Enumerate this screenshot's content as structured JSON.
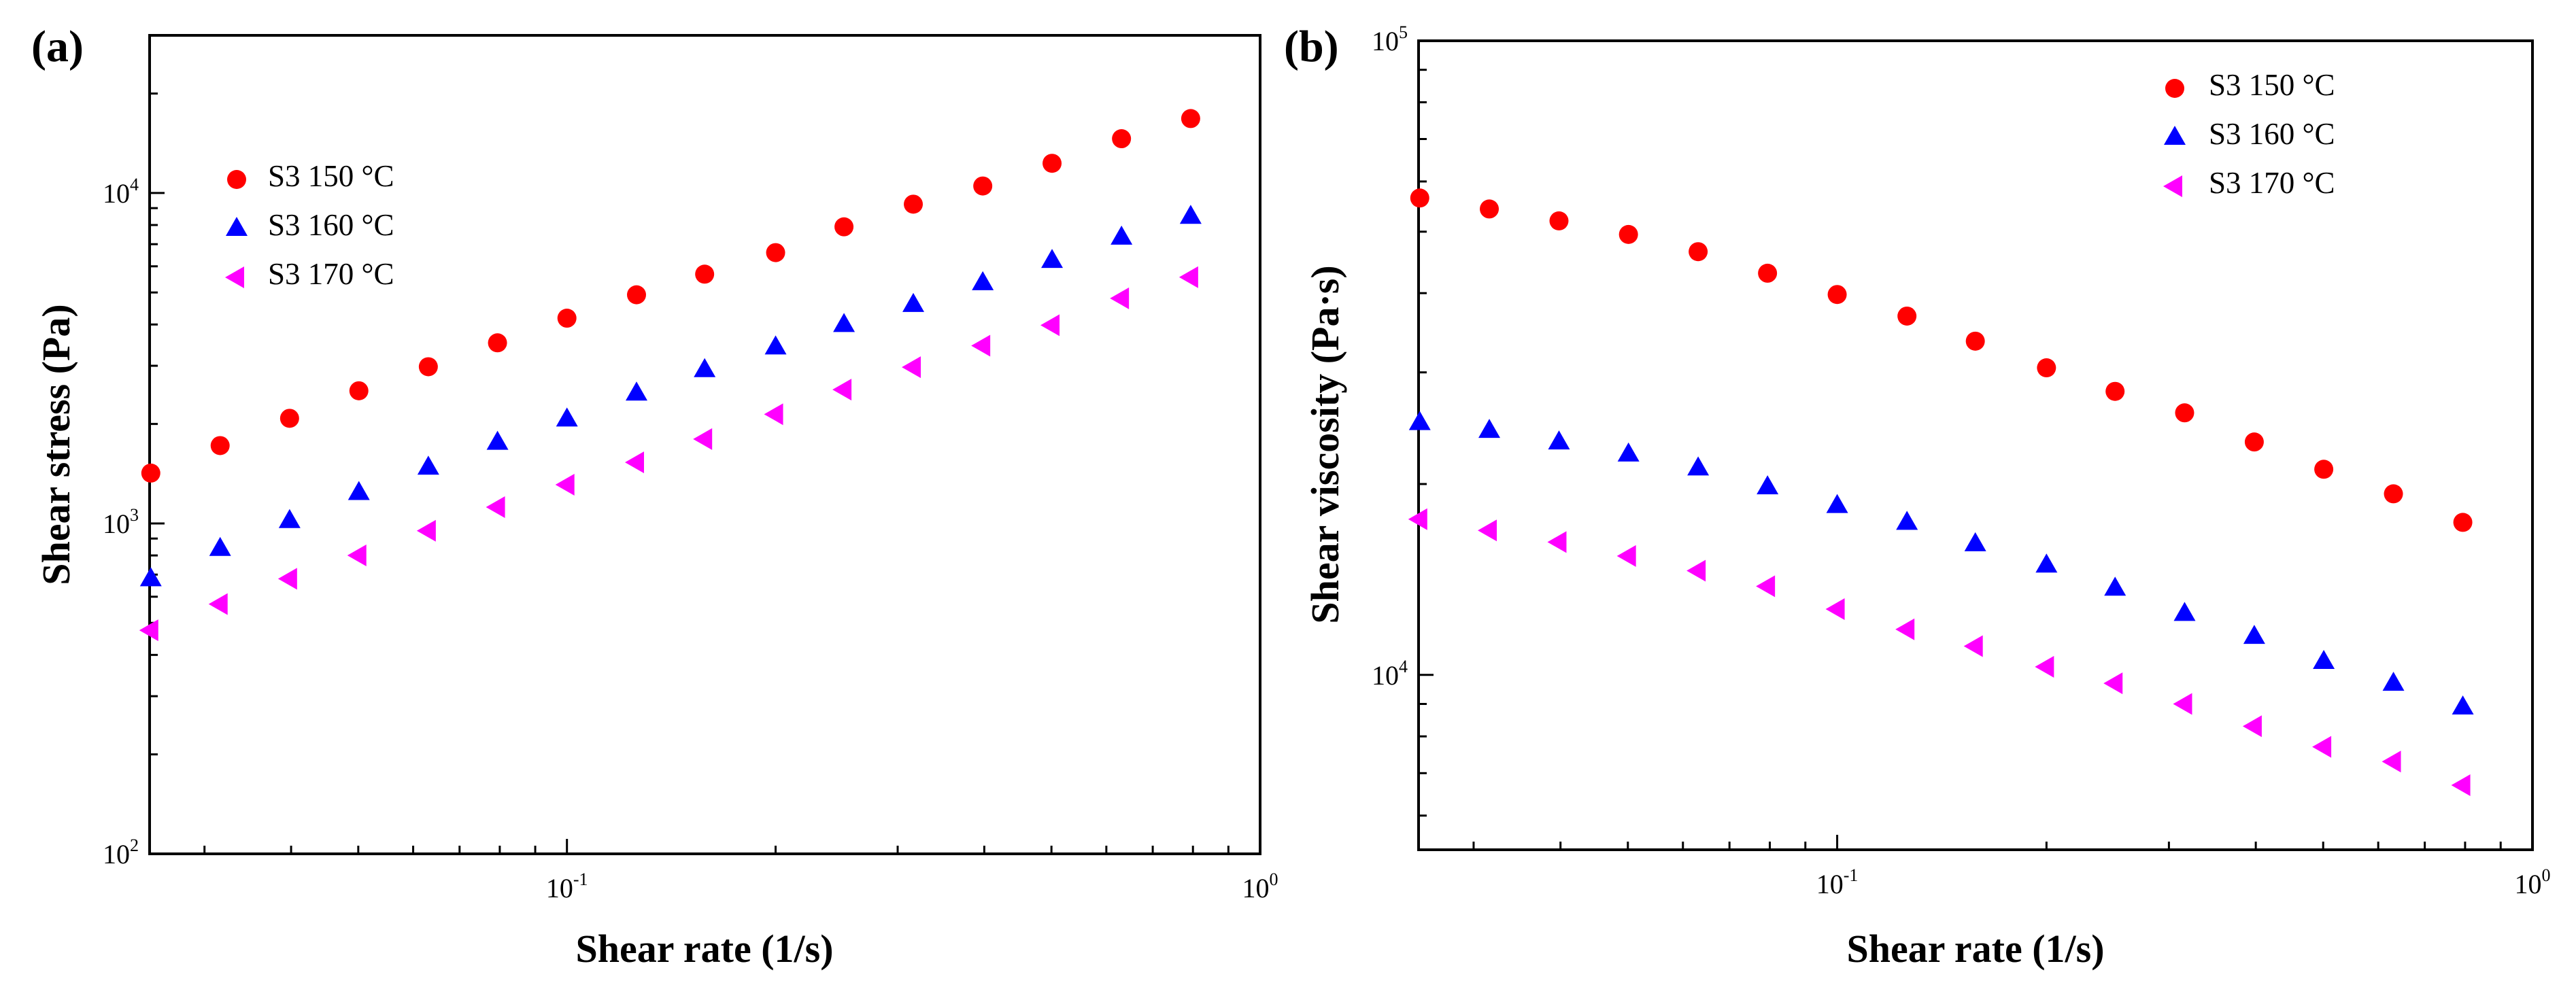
{
  "chart_data": [
    {
      "type": "scatter",
      "panel_label": "(a)",
      "title": "",
      "xlabel": "Shear rate (1/s)",
      "ylabel": "Shear stress (Pa)",
      "xscale": "log",
      "yscale": "log",
      "xlim": [
        0.025,
        1.0
      ],
      "ylim": [
        100,
        30000
      ],
      "x_ticks": [
        {
          "value": 0.1,
          "base": "10",
          "exp": "-1"
        },
        {
          "value": 1.0,
          "base": "10",
          "exp": "0"
        }
      ],
      "y_ticks": [
        {
          "value": 100,
          "base": "10",
          "exp": "2"
        },
        {
          "value": 1000,
          "base": "10",
          "exp": "3"
        },
        {
          "value": 10000,
          "base": "10",
          "exp": "4"
        }
      ],
      "legend_position": "top-left",
      "series": [
        {
          "name": "S3 150 °C",
          "marker": "circle",
          "color": "#ff0000",
          "x": [
            0.0251,
            0.0316,
            0.0398,
            0.0501,
            0.0631,
            0.0794,
            0.1,
            0.126,
            0.158,
            0.2,
            0.251,
            0.316,
            0.398,
            0.501,
            0.631,
            0.794
          ],
          "y": [
            1420,
            1720,
            2080,
            2520,
            2980,
            3520,
            4180,
            4920,
            5680,
            6600,
            7900,
            9250,
            10500,
            12300,
            14600,
            16800
          ]
        },
        {
          "name": "S3 160 °C",
          "marker": "triangle-up",
          "color": "#0000ff",
          "x": [
            0.0251,
            0.0316,
            0.0398,
            0.0501,
            0.0631,
            0.0794,
            0.1,
            0.126,
            0.158,
            0.2,
            0.251,
            0.316,
            0.398,
            0.501,
            0.631,
            0.794
          ],
          "y": [
            680,
            840,
            1020,
            1240,
            1480,
            1760,
            2070,
            2480,
            2920,
            3420,
            4000,
            4600,
            5350,
            6250,
            7350,
            8500
          ]
        },
        {
          "name": "S3 170 °C",
          "marker": "triangle-left",
          "color": "#ff00ff",
          "x": [
            0.0251,
            0.0316,
            0.0398,
            0.0501,
            0.0631,
            0.0794,
            0.1,
            0.126,
            0.158,
            0.2,
            0.251,
            0.316,
            0.398,
            0.501,
            0.631,
            0.794
          ],
          "y": [
            475,
            570,
            680,
            800,
            950,
            1120,
            1310,
            1530,
            1800,
            2140,
            2540,
            2970,
            3450,
            3980,
            4800,
            5560
          ]
        }
      ]
    },
    {
      "type": "scatter",
      "panel_label": "(b)",
      "title": "",
      "xlabel": "Shear rate (1/s)",
      "ylabel": "Shear viscosity (Pa·s)",
      "xscale": "log",
      "yscale": "log",
      "xlim": [
        0.025,
        1.0
      ],
      "ylim": [
        5300,
        100000
      ],
      "x_ticks": [
        {
          "value": 0.1,
          "base": "10",
          "exp": "-1"
        },
        {
          "value": 1.0,
          "base": "10",
          "exp": "0"
        }
      ],
      "y_ticks": [
        {
          "value": 10000,
          "base": "10",
          "exp": "4"
        },
        {
          "value": 100000,
          "base": "10",
          "exp": "5"
        }
      ],
      "legend_position": "top-right",
      "series": [
        {
          "name": "S3 150 °C",
          "marker": "circle",
          "color": "#ff0000",
          "x": [
            0.0251,
            0.0316,
            0.0398,
            0.0501,
            0.0631,
            0.0794,
            0.1,
            0.126,
            0.158,
            0.2,
            0.251,
            0.316,
            0.398,
            0.501,
            0.631,
            0.794
          ],
          "y": [
            56500,
            54300,
            52000,
            49500,
            46500,
            43000,
            39800,
            36800,
            33600,
            30500,
            28000,
            25900,
            23300,
            21100,
            19300,
            17400
          ]
        },
        {
          "name": "S3 160 °C",
          "marker": "triangle-up",
          "color": "#0000ff",
          "x": [
            0.0251,
            0.0316,
            0.0398,
            0.0501,
            0.0631,
            0.0794,
            0.1,
            0.126,
            0.158,
            0.2,
            0.251,
            0.316,
            0.398,
            0.501,
            0.631,
            0.794
          ],
          "y": [
            25000,
            24300,
            23300,
            22300,
            21200,
            19800,
            18500,
            17400,
            16100,
            14900,
            13700,
            12500,
            11500,
            10500,
            9700,
            8900
          ]
        },
        {
          "name": "S3 170 °C",
          "marker": "triangle-left",
          "color": "#ff00ff",
          "x": [
            0.0251,
            0.0316,
            0.0398,
            0.0501,
            0.0631,
            0.0794,
            0.1,
            0.126,
            0.158,
            0.2,
            0.251,
            0.316,
            0.398,
            0.501,
            0.631,
            0.794
          ],
          "y": [
            17600,
            16900,
            16200,
            15400,
            14600,
            13800,
            12700,
            11800,
            11100,
            10300,
            9700,
            9000,
            8300,
            7700,
            7300,
            6700
          ]
        }
      ]
    }
  ]
}
